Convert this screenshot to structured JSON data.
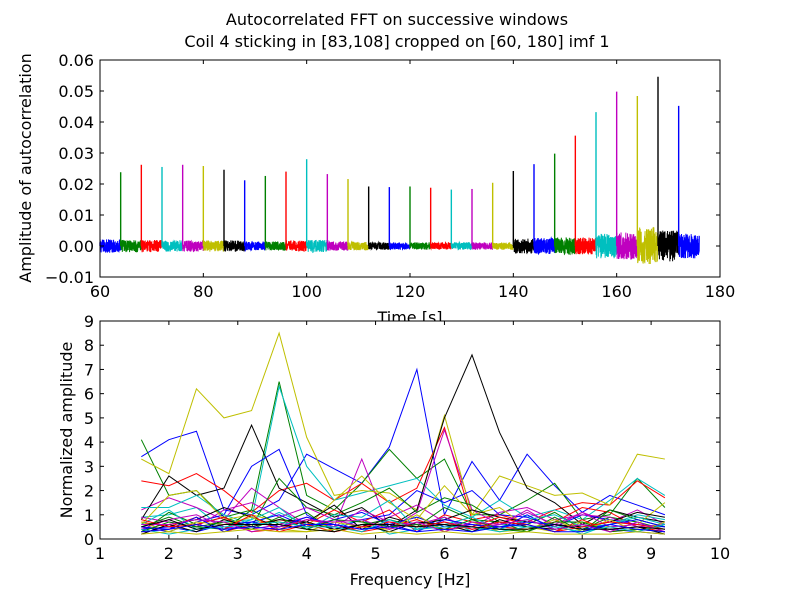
{
  "title": {
    "line1": "Autocorrelated FFT on successive windows",
    "line2": "Coil 4 sticking in [83,108] cropped on [60, 180] imf 1"
  },
  "colors": [
    "#0000ff",
    "#008000",
    "#ff0000",
    "#00bfbf",
    "#bf00bf",
    "#bfbf00",
    "#000000"
  ],
  "chart_data": [
    {
      "type": "line",
      "xlabel": "Time [s]",
      "ylabel": "Amplitude of autocorrelation",
      "xlim": [
        60,
        180
      ],
      "ylim": [
        -0.01,
        0.06
      ],
      "xticks": [
        "60",
        "80",
        "100",
        "120",
        "140",
        "160",
        "180"
      ],
      "yticks": [
        "−0.01",
        "0.00",
        "0.01",
        "0.02",
        "0.03",
        "0.04",
        "0.05",
        "0.06"
      ],
      "grid": false,
      "segments": [
        {
          "start": 60,
          "end": 64,
          "peak": 0.0012,
          "noise": 0.0022
        },
        {
          "start": 64,
          "end": 68,
          "peak": 0.0238,
          "noise": 0.002
        },
        {
          "start": 68,
          "end": 72,
          "peak": 0.0262,
          "noise": 0.002
        },
        {
          "start": 72,
          "end": 76,
          "peak": 0.0255,
          "noise": 0.0018
        },
        {
          "start": 76,
          "end": 80,
          "peak": 0.0262,
          "noise": 0.0018
        },
        {
          "start": 80,
          "end": 84,
          "peak": 0.0258,
          "noise": 0.0018
        },
        {
          "start": 84,
          "end": 88,
          "peak": 0.0246,
          "noise": 0.0018
        },
        {
          "start": 88,
          "end": 92,
          "peak": 0.0212,
          "noise": 0.0015
        },
        {
          "start": 92,
          "end": 96,
          "peak": 0.0226,
          "noise": 0.0015
        },
        {
          "start": 96,
          "end": 100,
          "peak": 0.024,
          "noise": 0.0018
        },
        {
          "start": 100,
          "end": 104,
          "peak": 0.028,
          "noise": 0.002
        },
        {
          "start": 104,
          "end": 108,
          "peak": 0.0232,
          "noise": 0.0015
        },
        {
          "start": 108,
          "end": 112,
          "peak": 0.0216,
          "noise": 0.0014
        },
        {
          "start": 112,
          "end": 116,
          "peak": 0.0192,
          "noise": 0.0012
        },
        {
          "start": 116,
          "end": 120,
          "peak": 0.019,
          "noise": 0.0012
        },
        {
          "start": 120,
          "end": 124,
          "peak": 0.0192,
          "noise": 0.0012
        },
        {
          "start": 124,
          "end": 128,
          "peak": 0.0188,
          "noise": 0.0012
        },
        {
          "start": 128,
          "end": 132,
          "peak": 0.0182,
          "noise": 0.0012
        },
        {
          "start": 132,
          "end": 136,
          "peak": 0.0184,
          "noise": 0.0012
        },
        {
          "start": 136,
          "end": 140,
          "peak": 0.0204,
          "noise": 0.0012
        },
        {
          "start": 140,
          "end": 144,
          "peak": 0.0242,
          "noise": 0.0024
        },
        {
          "start": 144,
          "end": 148,
          "peak": 0.0264,
          "noise": 0.0026
        },
        {
          "start": 148,
          "end": 152,
          "peak": 0.0298,
          "noise": 0.0028
        },
        {
          "start": 152,
          "end": 156,
          "peak": 0.0356,
          "noise": 0.0028
        },
        {
          "start": 156,
          "end": 160,
          "peak": 0.0432,
          "noise": 0.004
        },
        {
          "start": 160,
          "end": 164,
          "peak": 0.0498,
          "noise": 0.0044
        },
        {
          "start": 164,
          "end": 168,
          "peak": 0.0484,
          "noise": 0.006
        },
        {
          "start": 168,
          "end": 172,
          "peak": 0.0546,
          "noise": 0.005
        },
        {
          "start": 172,
          "end": 176,
          "peak": 0.0452,
          "noise": 0.004
        }
      ]
    },
    {
      "type": "line",
      "xlabel": "Frequency [Hz]",
      "ylabel": "Normalized amplitude",
      "xlim": [
        1,
        10
      ],
      "ylim": [
        0,
        9
      ],
      "xticks": [
        "1",
        "2",
        "3",
        "4",
        "5",
        "6",
        "7",
        "8",
        "9",
        "10"
      ],
      "yticks": [
        "0",
        "1",
        "2",
        "3",
        "4",
        "5",
        "6",
        "7",
        "8",
        "9"
      ],
      "grid": false,
      "x": [
        1.6,
        2.0,
        2.4,
        2.8,
        3.2,
        3.6,
        4.0,
        4.4,
        4.8,
        5.2,
        5.6,
        6.0,
        6.4,
        6.8,
        7.2,
        7.6,
        8.0,
        8.4,
        8.8,
        9.2
      ],
      "series": [
        {
          "values": [
            3.4,
            4.1,
            4.45,
            1.2,
            1.0,
            1.6,
            3.5,
            2.9,
            2.3,
            3.8,
            7.0,
            1.0,
            3.2,
            1.6,
            3.5,
            2.2,
            1.1,
            1.8,
            1.4,
            1.0
          ]
        },
        {
          "values": [
            4.1,
            1.8,
            2.0,
            0.9,
            1.2,
            6.5,
            1.8,
            1.2,
            2.3,
            3.7,
            2.5,
            3.3,
            1.0,
            1.0,
            1.6,
            2.3,
            0.8,
            1.0,
            2.5,
            1.3
          ]
        },
        {
          "values": [
            2.4,
            2.2,
            2.7,
            2.0,
            1.1,
            2.0,
            2.3,
            1.6,
            2.3,
            1.5,
            2.1,
            4.6,
            0.8,
            1.0,
            0.7,
            1.2,
            1.5,
            1.4,
            2.4,
            1.7
          ]
        },
        {
          "values": [
            0.9,
            1.0,
            1.3,
            0.4,
            0.8,
            6.3,
            3.0,
            1.6,
            1.9,
            2.2,
            2.5,
            1.4,
            0.9,
            1.6,
            0.9,
            1.2,
            0.8,
            1.6,
            2.5,
            1.8
          ]
        },
        {
          "values": [
            1.2,
            1.7,
            1.3,
            0.8,
            2.1,
            1.3,
            0.6,
            0.5,
            3.3,
            0.4,
            1.1,
            4.5,
            1.2,
            0.6,
            1.1,
            0.6,
            1.1,
            0.7,
            1.2,
            0.6
          ]
        },
        {
          "values": [
            3.3,
            2.7,
            6.2,
            5.0,
            5.3,
            8.5,
            4.2,
            1.8,
            2.0,
            1.9,
            1.2,
            5.1,
            1.0,
            2.6,
            2.2,
            1.8,
            1.9,
            1.4,
            3.5,
            3.3
          ]
        },
        {
          "values": [
            0.8,
            2.6,
            1.8,
            2.1,
            4.7,
            2.1,
            1.5,
            0.9,
            1.3,
            0.5,
            1.2,
            5.0,
            7.6,
            4.4,
            2.1,
            1.5,
            0.6,
            1.2,
            0.9,
            0.7
          ]
        },
        {
          "values": [
            0.5,
            0.3,
            0.7,
            1.0,
            3.0,
            3.7,
            1.0,
            0.4,
            0.8,
            1.0,
            2.0,
            1.5,
            2.0,
            1.0,
            0.9,
            0.5,
            1.0,
            0.8,
            0.6,
            0.5
          ]
        },
        {
          "values": [
            0.3,
            1.1,
            0.6,
            0.9,
            0.5,
            2.5,
            1.3,
            1.0,
            1.5,
            2.1,
            1.1,
            1.7,
            1.4,
            0.7,
            0.6,
            1.1,
            0.4,
            0.9,
            0.7,
            0.4
          ]
        },
        {
          "values": [
            0.7,
            0.5,
            0.9,
            0.3,
            0.6,
            0.8,
            0.6,
            1.2,
            0.7,
            1.2,
            0.3,
            1.0,
            0.7,
            0.5,
            0.4,
            0.7,
            1.3,
            1.1,
            0.5,
            0.3
          ]
        },
        {
          "values": [
            1.3,
            1.3,
            1.8,
            1.0,
            0.6,
            1.1,
            0.6,
            0.5,
            0.8,
            0.2,
            0.4,
            0.9,
            0.3,
            0.6,
            0.5,
            0.6,
            0.2,
            0.6,
            1.0,
            0.8
          ]
        },
        {
          "values": [
            0.9,
            0.7,
            0.5,
            1.2,
            1.5,
            0.9,
            1.3,
            0.8,
            0.5,
            0.9,
            1.4,
            0.7,
            0.5,
            1.1,
            1.3,
            0.8,
            1.0,
            0.9,
            0.5,
            0.6
          ]
        },
        {
          "values": [
            0.6,
            1.8,
            2.0,
            0.8,
            1.0,
            0.7,
            0.5,
            1.6,
            2.6,
            1.5,
            0.8,
            2.2,
            1.0,
            1.3,
            0.5,
            0.3,
            0.7,
            0.5,
            0.6,
            1.5
          ]
        },
        {
          "values": [
            0.2,
            0.6,
            0.8,
            1.3,
            0.9,
            0.5,
            0.7,
            1.4,
            0.4,
            0.9,
            0.6,
            0.8,
            1.2,
            0.9,
            0.7,
            0.6,
            0.5,
            0.7,
            1.1,
            0.9
          ]
        },
        {
          "values": [
            0.4,
            0.5,
            0.3,
            0.6,
            0.7,
            1.0,
            0.5,
            0.8,
            1.1,
            0.6,
            0.9,
            0.5,
            0.6,
            0.4,
            1.0,
            0.4,
            0.6,
            0.4,
            0.3,
            0.2
          ]
        },
        {
          "values": [
            0.5,
            0.9,
            0.5,
            0.4,
            1.2,
            0.6,
            1.1,
            0.3,
            0.6,
            0.8,
            0.5,
            1.3,
            0.8,
            0.7,
            0.3,
            0.9,
            0.3,
            1.2,
            0.8,
            0.5
          ]
        },
        {
          "values": [
            0.3,
            0.4,
            0.6,
            0.9,
            0.3,
            0.4,
            0.8,
            0.6,
            0.3,
            0.5,
            0.8,
            0.4,
            0.5,
            0.9,
            0.6,
            0.3,
            0.8,
            0.3,
            0.4,
            0.3
          ]
        },
        {
          "values": [
            0.6,
            1.2,
            0.4,
            0.7,
            0.8,
            1.3,
            0.4,
            1.0,
            0.9,
            1.6,
            0.4,
            0.6,
            0.9,
            0.4,
            0.8,
            1.0,
            0.5,
            0.6,
            0.9,
            0.6
          ]
        },
        {
          "values": [
            0.4,
            0.8,
            1.0,
            0.5,
            0.4,
            0.6,
            0.9,
            0.5,
            1.2,
            0.7,
            0.6,
            0.9,
            0.4,
            0.6,
            1.2,
            0.5,
            1.1,
            0.5,
            0.6,
            0.4
          ]
        },
        {
          "values": [
            0.7,
            0.3,
            0.7,
            0.6,
            0.9,
            0.4,
            0.3,
            0.7,
            0.5,
            0.4,
            1.0,
            0.3,
            0.7,
            0.3,
            0.4,
            0.8,
            0.3,
            0.8,
            0.3,
            0.7
          ]
        },
        {
          "values": [
            0.2,
            0.6,
            0.3,
            0.8,
            0.5,
            0.8,
            0.7,
            0.4,
            0.6,
            0.3,
            0.7,
            0.6,
            0.3,
            0.8,
            0.5,
            0.4,
            0.6,
            0.4,
            0.5,
            0.2
          ]
        },
        {
          "values": [
            0.5,
            0.4,
            0.9,
            0.3,
            0.7,
            0.5,
            0.9,
            0.6,
            0.4,
            0.6,
            0.3,
            0.8,
            0.6,
            0.5,
            0.7,
            0.6,
            0.4,
            0.6,
            0.8,
            0.5
          ]
        },
        {
          "values": [
            0.3,
            0.7,
            0.5,
            0.7,
            0.4,
            0.9,
            0.4,
            0.8,
            0.7,
            0.5,
            0.6,
            0.4,
            0.8,
            0.4,
            0.3,
            0.7,
            0.7,
            0.3,
            0.4,
            0.3
          ]
        },
        {
          "values": [
            0.8,
            0.5,
            0.6,
            0.4,
            1.0,
            0.3,
            0.6,
            0.3,
            0.5,
            0.7,
            0.5,
            0.7,
            0.4,
            0.7,
            0.6,
            0.3,
            0.5,
            0.7,
            0.6,
            0.4
          ]
        },
        {
          "values": [
            0.4,
            0.2,
            0.4,
            0.5,
            0.6,
            0.7,
            0.5,
            0.5,
            0.3,
            0.8,
            0.4,
            0.5,
            0.5,
            0.3,
            0.5,
            0.5,
            0.3,
            0.5,
            0.3,
            0.6
          ]
        },
        {
          "values": [
            0.6,
            0.6,
            0.8,
            0.7,
            0.3,
            0.5,
            0.8,
            0.7,
            0.8,
            0.4,
            0.7,
            0.3,
            0.7,
            0.6,
            0.8,
            0.4,
            0.6,
            0.3,
            0.7,
            0.3
          ]
        },
        {
          "values": [
            0.2,
            0.3,
            0.2,
            0.3,
            0.4,
            0.3,
            0.3,
            0.4,
            0.2,
            0.3,
            0.2,
            0.3,
            0.2,
            0.2,
            0.3,
            0.2,
            0.2,
            0.2,
            0.3,
            0.2
          ]
        },
        {
          "values": [
            0.5,
            0.8,
            0.4,
            0.6,
            0.6,
            0.6,
            0.4,
            0.3,
            0.6,
            0.6,
            0.5,
            0.6,
            0.5,
            0.4,
            0.4,
            0.6,
            0.4,
            0.4,
            0.5,
            0.4
          ]
        },
        {
          "values": [
            0.3,
            0.4,
            0.6,
            0.4,
            0.5,
            0.4,
            0.6,
            0.6,
            0.4,
            0.5,
            0.3,
            0.4,
            0.3,
            0.5,
            0.6,
            0.3,
            0.3,
            0.6,
            0.4,
            0.3
          ]
        }
      ]
    }
  ]
}
